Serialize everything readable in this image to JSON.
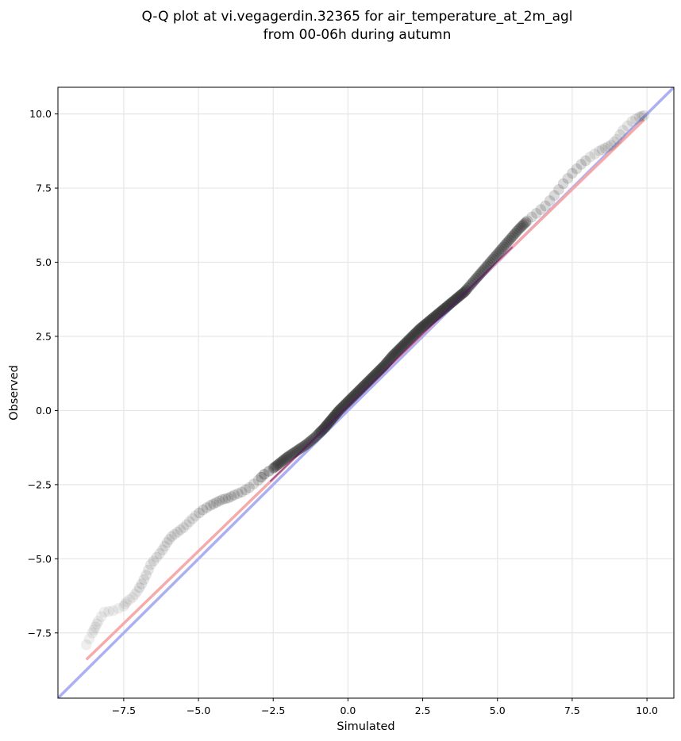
{
  "chart_data": {
    "type": "scatter",
    "title": "Q-Q plot at vi.vegagerdin.32365 for air_temperature_at_2m_agl",
    "subtitle": "from 00-06h during autumn",
    "xlabel": "Simulated",
    "ylabel": "Observed",
    "xlim": [
      -9.7,
      10.9
    ],
    "ylim": [
      -9.7,
      10.9
    ],
    "xticks": [
      -7.5,
      -5.0,
      -2.5,
      0.0,
      2.5,
      5.0,
      7.5,
      10.0
    ],
    "yticks": [
      -7.5,
      -5.0,
      -2.5,
      0.0,
      2.5,
      5.0,
      7.5,
      10.0
    ],
    "xtick_labels": [
      "−7.5",
      "−5.0",
      "−2.5",
      "0.0",
      "2.5",
      "5.0",
      "7.5",
      "10.0"
    ],
    "ytick_labels": [
      "−7.5",
      "−5.0",
      "−2.5",
      "0.0",
      "2.5",
      "5.0",
      "7.5",
      "10.0"
    ],
    "grid": true,
    "colors": {
      "points": "#333333",
      "identity_line": "#aab0f2",
      "fit_line": "#f4a7a7",
      "fit_core": "#7a1aa0"
    },
    "series": [
      {
        "kind": "quantile-points",
        "x": [
          -8.75,
          -8.55,
          -8.45,
          -8.35,
          -8.15,
          -7.85,
          -7.5,
          -7.4,
          -7.2,
          -7.05,
          -6.9,
          -6.75,
          -6.6,
          -6.4,
          -6.2,
          -6.05,
          -5.9,
          -5.7,
          -5.5,
          -5.3,
          -5.1,
          -4.85,
          -4.6,
          -4.4,
          -4.2,
          -4.0,
          -3.8,
          -3.55,
          -3.3,
          -3.0,
          -2.8,
          -2.5,
          -2.25,
          -2.0,
          -1.7,
          -1.4,
          -1.1,
          -0.8,
          -0.55,
          -0.3,
          0.0,
          0.3,
          0.6,
          0.9,
          1.2,
          1.5,
          1.8,
          2.1,
          2.4,
          2.7,
          3.0,
          3.3,
          3.6,
          3.9,
          4.2,
          4.5,
          4.8,
          5.1,
          5.4,
          5.7,
          6.0,
          6.3,
          6.6,
          6.9,
          7.2,
          7.5,
          7.8,
          8.1,
          8.4,
          8.6,
          8.8,
          9.0,
          9.2,
          9.5,
          9.75,
          9.9
        ],
        "y": [
          -7.9,
          -7.5,
          -7.3,
          -7.1,
          -6.8,
          -6.75,
          -6.6,
          -6.45,
          -6.3,
          -6.1,
          -5.85,
          -5.55,
          -5.2,
          -4.95,
          -4.7,
          -4.45,
          -4.25,
          -4.1,
          -3.95,
          -3.75,
          -3.55,
          -3.35,
          -3.2,
          -3.1,
          -3.0,
          -2.95,
          -2.85,
          -2.75,
          -2.6,
          -2.35,
          -2.15,
          -1.95,
          -1.75,
          -1.55,
          -1.35,
          -1.15,
          -0.9,
          -0.6,
          -0.3,
          0.0,
          0.3,
          0.6,
          0.9,
          1.2,
          1.5,
          1.85,
          2.15,
          2.45,
          2.75,
          3.0,
          3.25,
          3.5,
          3.75,
          4.0,
          4.35,
          4.7,
          5.05,
          5.4,
          5.75,
          6.1,
          6.4,
          6.65,
          6.9,
          7.25,
          7.65,
          8.0,
          8.3,
          8.55,
          8.75,
          8.85,
          8.95,
          9.15,
          9.45,
          9.75,
          9.9,
          9.95
        ]
      },
      {
        "kind": "identity-line",
        "x": [
          -9.7,
          10.9
        ],
        "y": [
          -9.7,
          10.9
        ]
      },
      {
        "kind": "fit-line",
        "x": [
          -8.75,
          9.9
        ],
        "y": [
          -8.4,
          9.8
        ]
      }
    ]
  }
}
